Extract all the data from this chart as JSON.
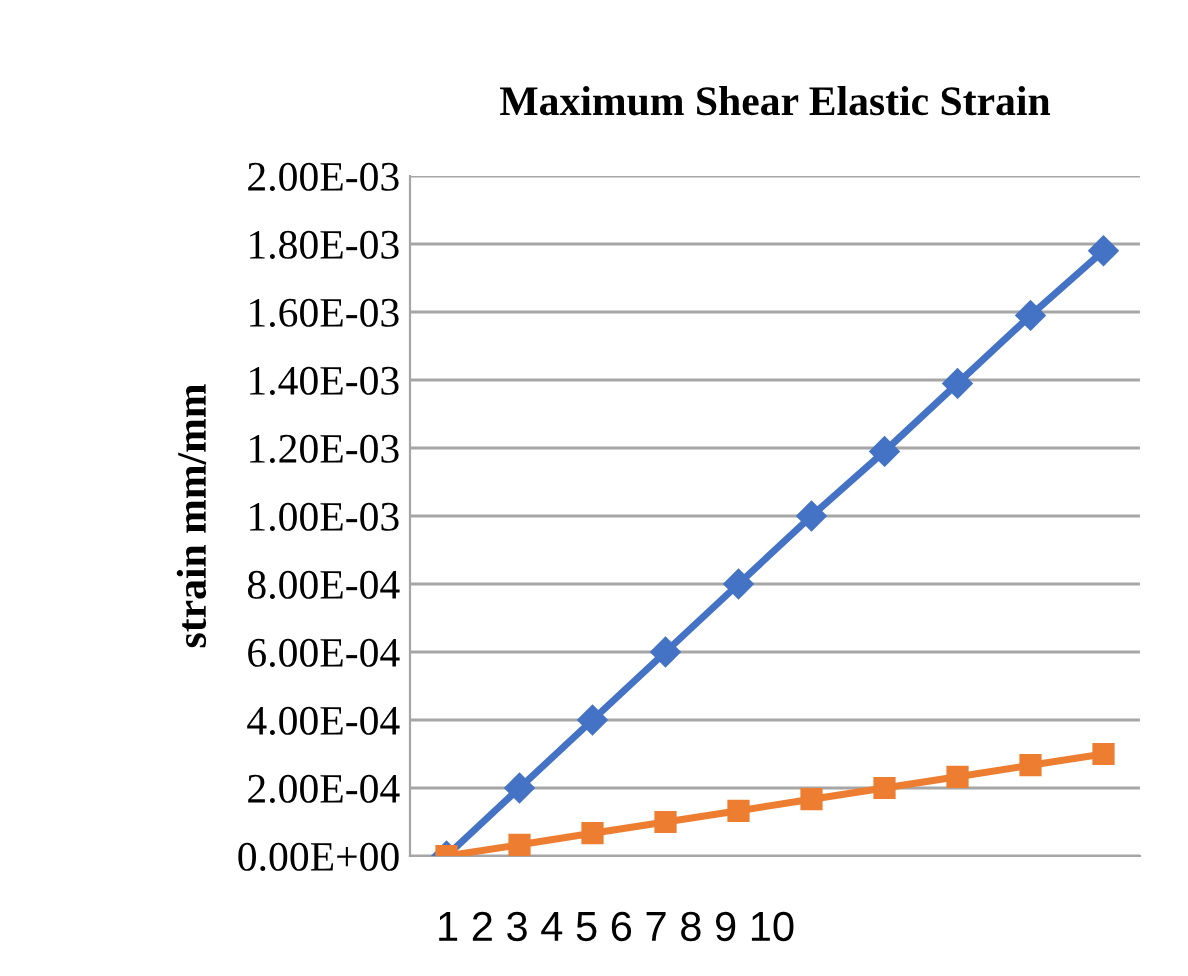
{
  "chart_data": {
    "type": "line",
    "title": "Maximum Shear Elastic Strain",
    "ylabel": "strain mm/mm",
    "categories": [
      null,
      null,
      null,
      null,
      null,
      null,
      null,
      null,
      null,
      null
    ],
    "series": [
      {
        "color": "#4472c4",
        "marker": "diamond",
        "values": [
          0,
          0.0002,
          0.0004,
          0.0006,
          0.0008,
          0.001,
          0.00119,
          0.00139,
          0.00159,
          0.00178
        ]
      },
      {
        "color": "#ed7d31",
        "marker": "square",
        "values": [
          0,
          3.3e-05,
          6.7e-05,
          0.0001,
          0.000133,
          0.000167,
          0.0002,
          0.000233,
          0.000267,
          0.0003
        ]
      }
    ],
    "ylim": [
      0,
      0.002
    ],
    "yticks": [
      {
        "value": 0,
        "label": "0.00E+00"
      },
      {
        "value": 0.0002,
        "label": "2.00E-04"
      },
      {
        "value": 0.0004,
        "label": "4.00E-04"
      },
      {
        "value": 0.0006,
        "label": "6.00E-04"
      },
      {
        "value": 0.0008,
        "label": "8.00E-04"
      },
      {
        "value": 0.001,
        "label": "1.00E-03"
      },
      {
        "value": 0.0012,
        "label": "1.20E-03"
      },
      {
        "value": 0.0014,
        "label": "1.40E-03"
      },
      {
        "value": 0.0016,
        "label": "1.60E-03"
      },
      {
        "value": 0.0018,
        "label": "1.80E-03"
      },
      {
        "value": 0.002,
        "label": "2.00E-03"
      }
    ],
    "annotations": [
      "1 2 3 4 5 6 7 8 9 10"
    ],
    "grid": "y",
    "legend": false
  }
}
